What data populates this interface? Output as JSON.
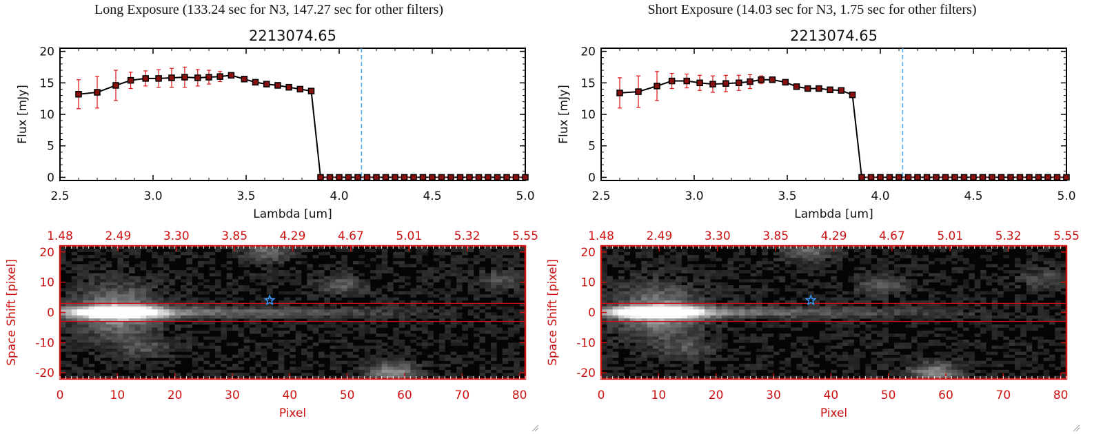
{
  "panels": [
    {
      "title": "Long Exposure (133.24 sec for N3, 147.27 sec for other filters)",
      "object_id": "2213074.65"
    },
    {
      "title": "Short Exposure (14.03 sec for N3, 1.75 sec for other filters)",
      "object_id": "2213074.65"
    }
  ],
  "colors": {
    "axis": "#000000",
    "red_axis": "#cc1111",
    "errorbar": "#e01010",
    "marker_fill": "#8a1010",
    "dashed_line": "#44aaff",
    "star_marker": "#3399ff"
  },
  "chart_data": [
    {
      "panel": "long",
      "type": "line",
      "title": "2213074.65",
      "xlabel": "Lambda [um]",
      "ylabel": "Flux [mJy]",
      "xlim": [
        2.5,
        5.0
      ],
      "ylim": [
        -0.5,
        20.5
      ],
      "x_ticks": [
        2.5,
        3.0,
        3.5,
        4.0,
        4.5,
        5.0
      ],
      "x_tick_labels": [
        "2.5",
        "3.0",
        "3.5",
        "4.0",
        "4.5",
        "5.0"
      ],
      "y_ticks": [
        0,
        5,
        10,
        15,
        20
      ],
      "y_tick_labels": [
        "0",
        "5",
        "10",
        "15",
        "20"
      ],
      "dashed_vline_x": 4.12,
      "series": [
        {
          "name": "flux",
          "x": [
            2.6,
            2.7,
            2.8,
            2.88,
            2.96,
            3.03,
            3.1,
            3.17,
            3.24,
            3.3,
            3.36,
            3.42,
            3.49,
            3.55,
            3.61,
            3.67,
            3.73,
            3.79,
            3.85,
            3.9,
            3.95,
            4.0,
            4.05,
            4.1,
            4.15,
            4.2,
            4.25,
            4.3,
            4.35,
            4.4,
            4.45,
            4.5,
            4.55,
            4.6,
            4.65,
            4.7,
            4.75,
            4.8,
            4.85,
            4.9,
            4.95,
            5.0
          ],
          "y": [
            13.2,
            13.5,
            14.6,
            15.4,
            15.7,
            15.7,
            15.8,
            15.9,
            15.8,
            15.9,
            16.0,
            16.2,
            15.6,
            15.1,
            14.8,
            14.6,
            14.3,
            14.0,
            13.7,
            0,
            0,
            0,
            0,
            0,
            0,
            0,
            0,
            0,
            0,
            0,
            0,
            0,
            0,
            0,
            0,
            0,
            0,
            0,
            0,
            0,
            0,
            0
          ],
          "err": [
            2.3,
            2.5,
            2.4,
            1.3,
            1.2,
            1.4,
            1.5,
            1.6,
            1.3,
            1.1,
            0.8,
            0.4,
            0.3,
            0.3,
            0.3,
            0.3,
            0.3,
            0.3,
            0.3,
            0,
            0,
            0,
            0,
            0,
            0,
            0,
            0,
            0,
            0,
            0,
            0,
            0,
            0,
            0,
            0,
            0,
            0,
            0,
            0,
            0,
            0,
            0
          ]
        }
      ]
    },
    {
      "panel": "short",
      "type": "line",
      "title": "2213074.65",
      "xlabel": "Lambda [um]",
      "ylabel": "Flux [mJy]",
      "xlim": [
        2.5,
        5.0
      ],
      "ylim": [
        -0.5,
        20.5
      ],
      "x_ticks": [
        2.5,
        3.0,
        3.5,
        4.0,
        4.5,
        5.0
      ],
      "x_tick_labels": [
        "2.5",
        "3.0",
        "3.5",
        "4.0",
        "4.5",
        "5.0"
      ],
      "y_ticks": [
        0,
        5,
        10,
        15,
        20
      ],
      "y_tick_labels": [
        "0",
        "5",
        "10",
        "15",
        "20"
      ],
      "dashed_vline_x": 4.12,
      "series": [
        {
          "name": "flux",
          "x": [
            2.6,
            2.7,
            2.8,
            2.88,
            2.96,
            3.03,
            3.1,
            3.17,
            3.24,
            3.3,
            3.36,
            3.42,
            3.49,
            3.55,
            3.61,
            3.67,
            3.73,
            3.79,
            3.85,
            3.9,
            3.95,
            4.0,
            4.05,
            4.1,
            4.15,
            4.2,
            4.25,
            4.3,
            4.35,
            4.4,
            4.45,
            4.5,
            4.55,
            4.6,
            4.65,
            4.7,
            4.75,
            4.8,
            4.85,
            4.9,
            4.95,
            5.0
          ],
          "y": [
            13.4,
            13.6,
            14.5,
            15.3,
            15.3,
            15.0,
            14.8,
            14.9,
            15.0,
            15.2,
            15.5,
            15.5,
            15.1,
            14.4,
            14.1,
            14.1,
            13.9,
            13.8,
            13.1,
            0,
            0,
            0,
            0,
            0,
            0,
            0,
            0,
            0,
            0,
            0,
            0,
            0,
            0,
            0,
            0,
            0,
            0,
            0,
            0,
            0,
            0,
            0
          ],
          "err": [
            2.4,
            2.5,
            2.3,
            1.2,
            1.1,
            1.2,
            1.3,
            1.3,
            1.2,
            1.1,
            0.6,
            0.4,
            0.4,
            0.3,
            0.3,
            0.3,
            0.3,
            0.3,
            0.3,
            0,
            0,
            0,
            0,
            0,
            0,
            0,
            0,
            0,
            0,
            0,
            0,
            0,
            0,
            0,
            0,
            0,
            0,
            0,
            0,
            0,
            0,
            0
          ]
        }
      ]
    },
    {
      "panel": "long",
      "type": "heatmap",
      "xlabel": "Pixel",
      "ylabel": "Space Shift [pixel]",
      "xlim": [
        0,
        81
      ],
      "ylim": [
        -22,
        22
      ],
      "x_ticks": [
        0,
        10,
        20,
        30,
        40,
        50,
        60,
        70,
        80
      ],
      "x_tick_labels": [
        "0",
        "10",
        "20",
        "30",
        "40",
        "50",
        "60",
        "70",
        "80"
      ],
      "y_ticks": [
        20,
        10,
        0,
        -10,
        -20
      ],
      "y_tick_labels": [
        "20",
        "10",
        "0",
        "-10",
        "-20"
      ],
      "top_axis_tick_labels": [
        "1.48",
        "2.49",
        "3.30",
        "3.85",
        "4.29",
        "4.67",
        "5.01",
        "5.32",
        "5.55"
      ],
      "aperture_lines_y": [
        3,
        -3
      ],
      "source_marker": {
        "x": 36.5,
        "y": 4,
        "symbol": "star"
      },
      "dark_pixel": {
        "x": 48.5,
        "y": 2
      },
      "spectrum_trace": {
        "peak_x": 10,
        "y_center": 0
      },
      "blobs": [
        {
          "x": 36,
          "y": 20,
          "intensity": 0.3
        },
        {
          "x": 49,
          "y": 9,
          "intensity": 0.25
        },
        {
          "x": 58,
          "y": -20,
          "intensity": 0.45
        },
        {
          "x": 15,
          "y": -12,
          "intensity": 0.2
        },
        {
          "x": 77,
          "y": 11,
          "intensity": 0.2
        }
      ]
    },
    {
      "panel": "short",
      "type": "heatmap",
      "xlabel": "Pixel",
      "ylabel": "Space Shift [pixel]",
      "xlim": [
        0,
        81
      ],
      "ylim": [
        -22,
        22
      ],
      "x_ticks": [
        0,
        10,
        20,
        30,
        40,
        50,
        60,
        70,
        80
      ],
      "x_tick_labels": [
        "0",
        "10",
        "20",
        "30",
        "40",
        "50",
        "60",
        "70",
        "80"
      ],
      "y_ticks": [
        20,
        10,
        0,
        -10,
        -20
      ],
      "y_tick_labels": [
        "20",
        "10",
        "0",
        "-10",
        "-20"
      ],
      "top_axis_tick_labels": [
        "1.48",
        "2.49",
        "3.30",
        "3.85",
        "4.29",
        "4.67",
        "5.01",
        "5.32",
        "5.55"
      ],
      "aperture_lines_y": [
        3,
        -3
      ],
      "source_marker": {
        "x": 36.5,
        "y": 4,
        "symbol": "star"
      },
      "dark_pixel": {
        "x": 48.5,
        "y": 2
      },
      "spectrum_trace": {
        "peak_x": 10,
        "y_center": 0
      },
      "blobs": [
        {
          "x": 36,
          "y": 20,
          "intensity": 0.3
        },
        {
          "x": 49,
          "y": 9,
          "intensity": 0.25
        },
        {
          "x": 58,
          "y": -20,
          "intensity": 0.45
        },
        {
          "x": 15,
          "y": -12,
          "intensity": 0.2
        },
        {
          "x": 77,
          "y": 11,
          "intensity": 0.2
        }
      ]
    }
  ]
}
